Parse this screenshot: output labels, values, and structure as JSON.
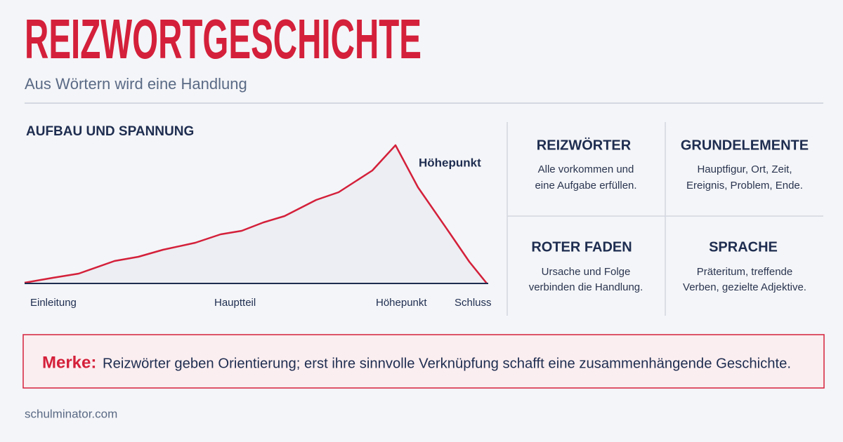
{
  "header": {
    "title": "REIZWORTGESCHICHTE",
    "subtitle": "Aus Wörtern wird eine Handlung"
  },
  "diagram": {
    "title": "AUFBAU UND SPANNUNG",
    "peak_label": "Höhepunkt",
    "stages": [
      "Einleitung",
      "Hauptteil",
      "Höhepunkt",
      "Schluss"
    ]
  },
  "cards": [
    {
      "title": "REIZWÖRTER",
      "lines": [
        "Alle vorkommen und",
        "eine Aufgabe erfüllen."
      ]
    },
    {
      "title": "GRUNDELEMENTE",
      "lines": [
        "Hauptfigur, Ort, Zeit,",
        "Ereignis, Problem, Ende."
      ]
    },
    {
      "title": "ROTER FADEN",
      "lines": [
        "Ursache und Folge",
        "verbinden die Handlung."
      ]
    },
    {
      "title": "SPRACHE",
      "lines": [
        "Präteritum, treffende",
        "Verben, gezielte Adjektive."
      ]
    }
  ],
  "note": {
    "label": "Merke:",
    "text": "Reizwörter geben Orientierung; erst ihre sinnvolle Verknüpfung schafft eine zusammenhängende Geschichte."
  },
  "footer": "schulminator.com"
}
